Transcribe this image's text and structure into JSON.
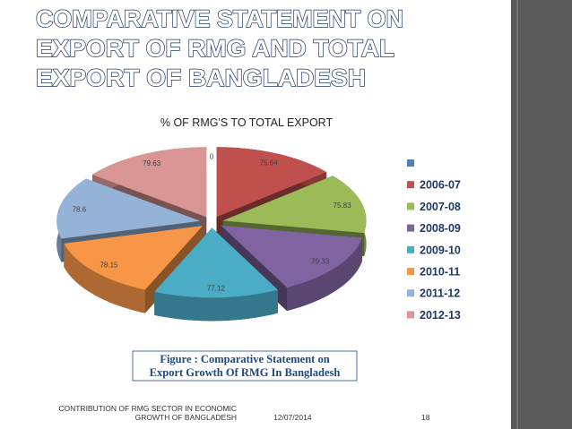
{
  "slide": {
    "title_lines": [
      "COMPARATIVE STATEMENT ON",
      "EXPORT OF RMG AND TOTAL",
      "EXPORT OF BANGLADESH"
    ],
    "caption_lines": [
      "Figure : Comparative Statement on",
      "Export Growth Of RMG In Bangladesh"
    ],
    "footer": {
      "text_lines": [
        "CONTRIBUTION OF RMG SECTOR IN ECONOMIC",
        "GROWTH OF BANGLADESH"
      ],
      "date": "12/07/2014",
      "page": "18"
    }
  },
  "chart_data": {
    "type": "pie",
    "title": "% OF RMG'S TO TOTAL EXPORT",
    "categories": [
      null,
      "2006-07",
      "2007-08",
      "2008-09",
      "2009-10",
      "2010-11",
      "2011-12",
      "2012-13"
    ],
    "values": [
      0,
      75.64,
      75.83,
      79.33,
      77.12,
      78.15,
      78.6,
      79.63
    ],
    "colors": [
      "#4f81bd",
      "#c0504d",
      "#9bbb59",
      "#8064a2",
      "#4bacc6",
      "#f79646",
      "#95b3d7",
      "#d99694"
    ],
    "legend": "right"
  }
}
